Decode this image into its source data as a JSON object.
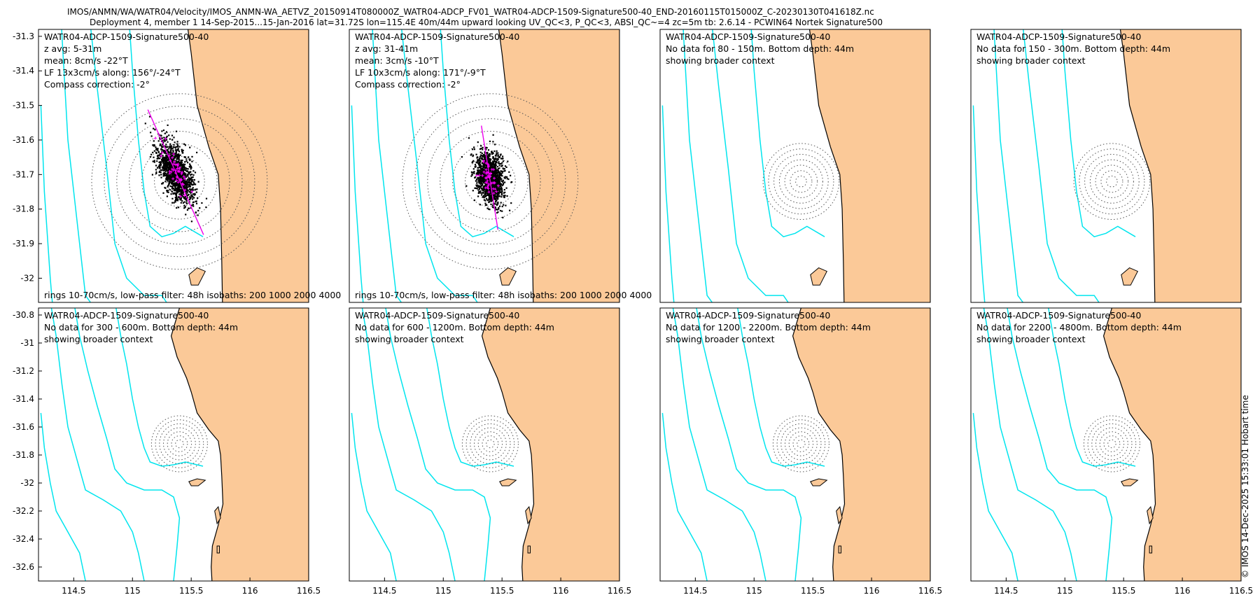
{
  "header": {
    "title_line1": "IMOS/ANMN/WA/WATR04/Velocity/IMOS_ANMN-WA_AETVZ_20150914T080000Z_WATR04-ADCP_FV01_WATR04-ADCP-1509-Signature500-40_END-20160115T015000Z_C-20230130T041618Z.nc",
    "title_line2": "Deployment 4, member 1 14-Sep-2015...15-Jan-2016 lat=31.72S lon=115.4E 40m/44m upward looking UV_QC<3, P_QC<3, ABSI_QC~=4 zc=5m tb: 2.6.14 - PCWIN64 Nortek Signature500"
  },
  "credit": "© IMOS 14-Dec-2025 15:33:01 Hobart time",
  "colors": {
    "land": "#fbc998",
    "isobath": "#00e5ee",
    "coast": "#000000",
    "axis_line": "#ed00ed",
    "rings": "#555555",
    "points": "#000000",
    "lf_points": "#ff00ff"
  },
  "chart_data": {
    "type": "scatter",
    "station": {
      "lon": 115.4,
      "lat": -31.72
    },
    "isobath_depths_m": [
      200,
      1000,
      2000,
      4000
    ],
    "xaxis": {
      "ticks": [
        114.5,
        115,
        115.5,
        116,
        116.5
      ],
      "tick_labels": [
        "114.5",
        "115",
        "115.5",
        "116",
        "116.5"
      ]
    },
    "rows": [
      {
        "xlim": [
          114.2,
          116.5
        ],
        "ylim": [
          -32.07,
          -31.28
        ],
        "yticks": [
          -31.3,
          -31.4,
          -31.5,
          -31.6,
          -31.7,
          -31.8,
          -31.9,
          -32
        ],
        "ytick_labels": [
          "-31.3",
          "-31.4",
          "-31.5",
          "-31.6",
          "-31.7",
          "-31.8",
          "-31.9",
          "-32"
        ],
        "show_xticks": false
      },
      {
        "xlim": [
          114.2,
          116.5
        ],
        "ylim": [
          -32.7,
          -30.75
        ],
        "yticks": [
          -30.8,
          -31,
          -31.2,
          -31.4,
          -31.6,
          -31.8,
          -32,
          -32.2,
          -32.4,
          -32.6
        ],
        "ytick_labels": [
          "-30.8",
          "-31",
          "-31.2",
          "-31.4",
          "-31.6",
          "-31.8",
          "-32",
          "-32.2",
          "-32.4",
          "-32.6"
        ],
        "show_xticks": true
      }
    ],
    "panels": [
      {
        "row": 0,
        "col": 0,
        "has_data": true,
        "lines": [
          "WATR04-ADCP-1509-Signature500-40",
          "z avg: 5-31m",
          "mean: 8cm/s -22°T",
          "LF 13x3cm/s along: 156°/-24°T",
          "Compass correction: -2°"
        ],
        "footer": "rings 10-70cm/s, low-pass filter: 48h isobaths: 200 1000 2000 4000",
        "ring_radius_deg_lat": 0.0363,
        "rings": 7,
        "speed_cm_s": 8,
        "direction_degT": -22,
        "cloud": {
          "major_axis_degT": 156,
          "major_sd_cm_s": 13,
          "minor_sd_cm_s": 3,
          "mean_u_cm_s": -3.0,
          "mean_v_cm_s": 7.4
        }
      },
      {
        "row": 0,
        "col": 1,
        "has_data": true,
        "lines": [
          "WATR04-ADCP-1509-Signature500-40",
          "z avg: 31-41m",
          "mean: 3cm/s -10°T",
          "LF 10x3cm/s along: 171°/-9°T",
          "Compass correction: -2°"
        ],
        "footer": "rings 10-70cm/s, low-pass filter: 48h isobaths: 200 1000 2000 4000",
        "ring_radius_deg_lat": 0.0363,
        "rings": 7,
        "speed_cm_s": 3,
        "direction_degT": -10,
        "cloud": {
          "major_axis_degT": 171,
          "major_sd_cm_s": 10,
          "minor_sd_cm_s": 3,
          "mean_u_cm_s": -0.5,
          "mean_v_cm_s": 3.0
        }
      },
      {
        "row": 0,
        "col": 2,
        "has_data": false,
        "lines": [
          "WATR04-ADCP-1509-Signature500-40",
          "No data for 80 - 150m. Bottom depth: 44m",
          "showing broader context"
        ],
        "ring_radius_deg_lat": 0.0157,
        "rings": 7
      },
      {
        "row": 0,
        "col": 3,
        "has_data": false,
        "lines": [
          "WATR04-ADCP-1509-Signature500-40",
          "No data for 150 - 300m. Bottom depth: 44m",
          "showing broader context"
        ],
        "ring_radius_deg_lat": 0.0157,
        "rings": 7
      },
      {
        "row": 1,
        "col": 0,
        "has_data": false,
        "lines": [
          "WATR04-ADCP-1509-Signature500-40",
          "No data for 300 - 600m. Bottom depth: 44m",
          "showing broader context"
        ],
        "ring_radius_deg_lat": 0.0286,
        "rings": 7
      },
      {
        "row": 1,
        "col": 1,
        "has_data": false,
        "lines": [
          "WATR04-ADCP-1509-Signature500-40",
          "No data for 600 - 1200m. Bottom depth: 44m",
          "showing broader context"
        ],
        "ring_radius_deg_lat": 0.0286,
        "rings": 7
      },
      {
        "row": 1,
        "col": 2,
        "has_data": false,
        "lines": [
          "WATR04-ADCP-1509-Signature500-40",
          "No data for 1200 - 2200m. Bottom depth: 44m",
          "showing broader context"
        ],
        "ring_radius_deg_lat": 0.0286,
        "rings": 7
      },
      {
        "row": 1,
        "col": 3,
        "has_data": false,
        "lines": [
          "WATR04-ADCP-1509-Signature500-40",
          "No data for 2200 - 4800m. Bottom depth: 44m",
          "showing broader context"
        ],
        "ring_radius_deg_lat": 0.0286,
        "rings": 7
      }
    ],
    "coastline": [
      [
        116.5,
        -30.6
      ],
      [
        115.42,
        -30.6
      ],
      [
        115.4,
        -30.75
      ],
      [
        115.33,
        -30.95
      ],
      [
        115.38,
        -31.1
      ],
      [
        115.46,
        -31.25
      ],
      [
        115.5,
        -31.35
      ],
      [
        115.55,
        -31.5
      ],
      [
        115.65,
        -31.62
      ],
      [
        115.73,
        -31.7
      ],
      [
        115.75,
        -31.8
      ],
      [
        115.76,
        -31.95
      ],
      [
        115.77,
        -32.15
      ],
      [
        115.73,
        -32.3
      ],
      [
        115.68,
        -32.45
      ],
      [
        115.67,
        -32.6
      ],
      [
        115.68,
        -32.75
      ],
      [
        115.67,
        -32.8
      ],
      [
        116.5,
        -32.8
      ]
    ],
    "islands": [
      [
        [
          115.48,
          -31.99
        ],
        [
          115.55,
          -31.97
        ],
        [
          115.62,
          -31.98
        ],
        [
          115.56,
          -32.02
        ],
        [
          115.5,
          -32.02
        ]
      ],
      [
        [
          115.7,
          -32.2
        ],
        [
          115.73,
          -32.17
        ],
        [
          115.75,
          -32.25
        ],
        [
          115.72,
          -32.29
        ]
      ],
      [
        [
          115.72,
          -32.45
        ],
        [
          115.74,
          -32.45
        ],
        [
          115.74,
          -32.5
        ],
        [
          115.72,
          -32.5
        ]
      ]
    ],
    "isobaths": [
      {
        "depth_m": 200,
        "points": [
          [
            114.85,
            -30.7
          ],
          [
            114.9,
            -30.95
          ],
          [
            114.95,
            -31.15
          ],
          [
            115.0,
            -31.4
          ],
          [
            115.05,
            -31.6
          ],
          [
            115.1,
            -31.75
          ],
          [
            115.15,
            -31.85
          ],
          [
            115.25,
            -31.88
          ],
          [
            115.35,
            -31.87
          ],
          [
            115.45,
            -31.85
          ],
          [
            115.6,
            -31.88
          ]
        ]
      },
      {
        "depth_m": 1000,
        "points": [
          [
            114.5,
            -30.7
          ],
          [
            114.55,
            -30.95
          ],
          [
            114.62,
            -31.2
          ],
          [
            114.7,
            -31.45
          ],
          [
            114.78,
            -31.68
          ],
          [
            114.85,
            -31.9
          ],
          [
            114.95,
            -32.0
          ],
          [
            115.1,
            -32.05
          ],
          [
            115.25,
            -32.05
          ],
          [
            115.35,
            -32.1
          ],
          [
            115.4,
            -32.25
          ],
          [
            115.38,
            -32.45
          ],
          [
            115.35,
            -32.7
          ]
        ]
      },
      {
        "depth_m": 2000,
        "points": [
          [
            114.3,
            -30.7
          ],
          [
            114.35,
            -30.95
          ],
          [
            114.4,
            -31.3
          ],
          [
            114.45,
            -31.6
          ],
          [
            114.55,
            -31.9
          ],
          [
            114.6,
            -32.05
          ],
          [
            114.75,
            -32.12
          ],
          [
            114.9,
            -32.2
          ],
          [
            115.0,
            -32.35
          ],
          [
            115.05,
            -32.5
          ],
          [
            115.1,
            -32.7
          ]
        ]
      },
      {
        "depth_m": 4000,
        "points": [
          [
            114.22,
            -31.5
          ],
          [
            114.25,
            -31.75
          ],
          [
            114.3,
            -32.0
          ],
          [
            114.35,
            -32.2
          ],
          [
            114.45,
            -32.35
          ],
          [
            114.55,
            -32.5
          ],
          [
            114.6,
            -32.7
          ]
        ]
      }
    ]
  }
}
